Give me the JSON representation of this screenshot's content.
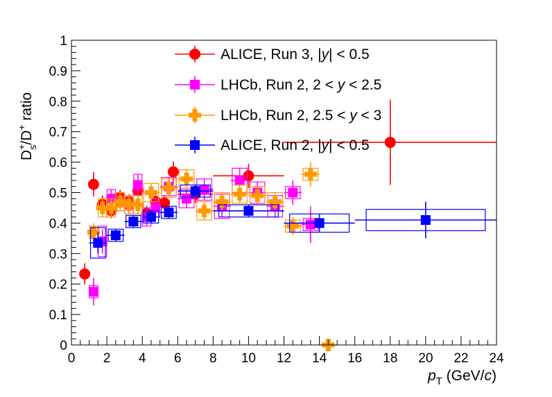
{
  "chart_data": {
    "type": "scatter",
    "xlabel": "p_T (GeV/c)",
    "xlabel_parts": {
      "main": "p",
      "sub": "T",
      "rest": " (GeV/",
      "unit_italic": "c",
      "close": ")"
    },
    "ylabel": "Ds+/D+ ratio",
    "ylabel_parts": {
      "d1": "D",
      "sup1": "+",
      "sub1": "s",
      "slash": "/D",
      "sup2": "+",
      "rest": " ratio"
    },
    "xlim": [
      0,
      24
    ],
    "ylim": [
      0,
      1
    ],
    "x_ticks": [
      "0",
      "2",
      "4",
      "6",
      "8",
      "10",
      "12",
      "14",
      "16",
      "18",
      "20",
      "22",
      "24"
    ],
    "y_ticks": [
      "0",
      "0.1",
      "0.2",
      "0.3",
      "0.4",
      "0.5",
      "0.6",
      "0.7",
      "0.8",
      "0.9",
      "1"
    ],
    "grid": false,
    "legend_position": "top-center",
    "series": [
      {
        "name": "ALICE, Run 3, |y| < 0.5",
        "legend_parts": [
          "ALICE, Run 3, ",
          "|",
          "y",
          "|",
          " < 0.5"
        ],
        "color": "#ff0000",
        "marker": "circle",
        "points": [
          {
            "x": 0.75,
            "y": 0.233,
            "xerr": 0.25,
            "yerr": 0.035
          },
          {
            "x": 1.25,
            "y": 0.527,
            "xerr": 0.25,
            "yerr": 0.04
          },
          {
            "x": 1.75,
            "y": 0.461,
            "xerr": 0.25,
            "yerr": 0.03
          },
          {
            "x": 2.25,
            "y": 0.441,
            "xerr": 0.25,
            "yerr": 0.025
          },
          {
            "x": 2.75,
            "y": 0.484,
            "xerr": 0.25,
            "yerr": 0.025
          },
          {
            "x": 3.25,
            "y": 0.47,
            "xerr": 0.25,
            "yerr": 0.025
          },
          {
            "x": 3.75,
            "y": 0.506,
            "xerr": 0.25,
            "yerr": 0.025
          },
          {
            "x": 4.25,
            "y": 0.432,
            "xerr": 0.25,
            "yerr": 0.025
          },
          {
            "x": 4.75,
            "y": 0.471,
            "xerr": 0.25,
            "yerr": 0.025
          },
          {
            "x": 5.25,
            "y": 0.466,
            "xerr": 0.25,
            "yerr": 0.025
          },
          {
            "x": 5.75,
            "y": 0.568,
            "xerr": 0.25,
            "yerr": 0.035
          },
          {
            "x": 7.0,
            "y": 0.495,
            "xerr": 1.0,
            "yerr": 0.03
          },
          {
            "x": 10.0,
            "y": 0.555,
            "xerr": 2.0,
            "yerr": 0.04
          },
          {
            "x": 18.0,
            "y": 0.665,
            "xerr": 6.0,
            "yerr": 0.14
          }
        ]
      },
      {
        "name": "LHCb, Run 2, 2 < y < 2.5",
        "legend_parts": [
          "LHCb, Run 2, 2 <  ",
          "y",
          " < 2.5"
        ],
        "color": "#ff00ff",
        "marker": "square",
        "points": [
          {
            "x": 1.25,
            "y": 0.175,
            "xerr": 0.25,
            "yerr": 0.045,
            "sys": 0.02
          },
          {
            "x": 1.75,
            "y": 0.34,
            "xerr": 0.25,
            "yerr": 0.04,
            "sys": 0.05
          },
          {
            "x": 2.25,
            "y": 0.48,
            "xerr": 0.25,
            "yerr": 0.03,
            "sys": 0.03
          },
          {
            "x": 2.75,
            "y": 0.47,
            "xerr": 0.25,
            "yerr": 0.03,
            "sys": 0.03
          },
          {
            "x": 3.25,
            "y": 0.46,
            "xerr": 0.25,
            "yerr": 0.03,
            "sys": 0.03
          },
          {
            "x": 3.75,
            "y": 0.525,
            "xerr": 0.25,
            "yerr": 0.035,
            "sys": 0.035
          },
          {
            "x": 4.25,
            "y": 0.42,
            "xerr": 0.25,
            "yerr": 0.03,
            "sys": 0.03
          },
          {
            "x": 4.75,
            "y": 0.45,
            "xerr": 0.25,
            "yerr": 0.03,
            "sys": 0.03
          },
          {
            "x": 5.5,
            "y": 0.52,
            "xerr": 0.5,
            "yerr": 0.03,
            "sys": 0.03
          },
          {
            "x": 6.5,
            "y": 0.48,
            "xerr": 0.5,
            "yerr": 0.03,
            "sys": 0.03
          },
          {
            "x": 7.5,
            "y": 0.51,
            "xerr": 0.5,
            "yerr": 0.035,
            "sys": 0.035
          },
          {
            "x": 8.5,
            "y": 0.455,
            "xerr": 0.5,
            "yerr": 0.035,
            "sys": 0.04
          },
          {
            "x": 9.5,
            "y": 0.54,
            "xerr": 0.5,
            "yerr": 0.04,
            "sys": 0.04
          },
          {
            "x": 10.5,
            "y": 0.5,
            "xerr": 0.5,
            "yerr": 0.035,
            "sys": 0.035
          },
          {
            "x": 11.5,
            "y": 0.455,
            "xerr": 0.5,
            "yerr": 0.035,
            "sys": 0.035
          },
          {
            "x": 12.5,
            "y": 0.5,
            "xerr": 0.5,
            "yerr": 0.04,
            "sys": 0.02
          },
          {
            "x": 13.5,
            "y": 0.395,
            "xerr": 0.5,
            "yerr": 0.06,
            "sys": 0.02
          }
        ]
      },
      {
        "name": "LHCb, Run 2, 2.5 < y < 3",
        "legend_parts": [
          "LHCb, Run 2, 2.5 <  ",
          "y",
          " < 3"
        ],
        "color": "#ff9900",
        "marker": "cross",
        "points": [
          {
            "x": 1.25,
            "y": 0.37,
            "xerr": 0.25,
            "yerr": 0.03,
            "sys": 0.02
          },
          {
            "x": 1.75,
            "y": 0.45,
            "xerr": 0.25,
            "yerr": 0.03,
            "sys": 0.03
          },
          {
            "x": 2.25,
            "y": 0.45,
            "xerr": 0.25,
            "yerr": 0.03,
            "sys": 0.03
          },
          {
            "x": 2.75,
            "y": 0.47,
            "xerr": 0.25,
            "yerr": 0.03,
            "sys": 0.03
          },
          {
            "x": 3.25,
            "y": 0.46,
            "xerr": 0.25,
            "yerr": 0.03,
            "sys": 0.03
          },
          {
            "x": 3.75,
            "y": 0.46,
            "xerr": 0.25,
            "yerr": 0.03,
            "sys": 0.03
          },
          {
            "x": 4.5,
            "y": 0.5,
            "xerr": 0.5,
            "yerr": 0.03,
            "sys": 0.03
          },
          {
            "x": 5.5,
            "y": 0.515,
            "xerr": 0.5,
            "yerr": 0.03,
            "sys": 0.03
          },
          {
            "x": 6.5,
            "y": 0.545,
            "xerr": 0.5,
            "yerr": 0.03,
            "sys": 0.03
          },
          {
            "x": 7.5,
            "y": 0.44,
            "xerr": 0.5,
            "yerr": 0.03,
            "sys": 0.03
          },
          {
            "x": 8.5,
            "y": 0.47,
            "xerr": 0.5,
            "yerr": 0.03,
            "sys": 0.03
          },
          {
            "x": 9.5,
            "y": 0.495,
            "xerr": 0.5,
            "yerr": 0.03,
            "sys": 0.03
          },
          {
            "x": 10.5,
            "y": 0.49,
            "xerr": 0.5,
            "yerr": 0.03,
            "sys": 0.03
          },
          {
            "x": 11.5,
            "y": 0.47,
            "xerr": 0.5,
            "yerr": 0.03,
            "sys": 0.03
          },
          {
            "x": 12.5,
            "y": 0.39,
            "xerr": 0.5,
            "yerr": 0.03,
            "sys": 0.02
          },
          {
            "x": 13.5,
            "y": 0.56,
            "xerr": 0.5,
            "yerr": 0.04,
            "sys": 0.02
          },
          {
            "x": 14.5,
            "y": 0.0,
            "xerr": 0.5,
            "yerr": 0.0,
            "sys": 0.0
          }
        ]
      },
      {
        "name": "ALICE, Run 2, |y| < 0.5",
        "legend_parts": [
          "ALICE, Run 2, ",
          "|",
          "y",
          "|",
          " < 0.5"
        ],
        "color": "#0000ff",
        "marker": "square",
        "points": [
          {
            "x": 1.5,
            "y": 0.335,
            "xerr": 0.5,
            "yerr": 0.035,
            "sys": 0.05
          },
          {
            "x": 2.5,
            "y": 0.36,
            "xerr": 0.5,
            "yerr": 0.02,
            "sys": 0.02
          },
          {
            "x": 3.5,
            "y": 0.405,
            "xerr": 0.5,
            "yerr": 0.02,
            "sys": 0.02
          },
          {
            "x": 4.5,
            "y": 0.42,
            "xerr": 0.5,
            "yerr": 0.02,
            "sys": 0.02
          },
          {
            "x": 5.5,
            "y": 0.435,
            "xerr": 0.5,
            "yerr": 0.02,
            "sys": 0.02
          },
          {
            "x": 7.0,
            "y": 0.505,
            "xerr": 1.0,
            "yerr": 0.02,
            "sys": 0.02
          },
          {
            "x": 10.0,
            "y": 0.44,
            "xerr": 2.0,
            "yerr": 0.02,
            "sys": 0.02
          },
          {
            "x": 14.0,
            "y": 0.4,
            "xerr": 2.0,
            "yerr": 0.03,
            "sys": 0.03
          },
          {
            "x": 20.0,
            "y": 0.41,
            "xerr": 4.0,
            "yerr": 0.06,
            "sys": 0.035
          }
        ]
      }
    ]
  }
}
